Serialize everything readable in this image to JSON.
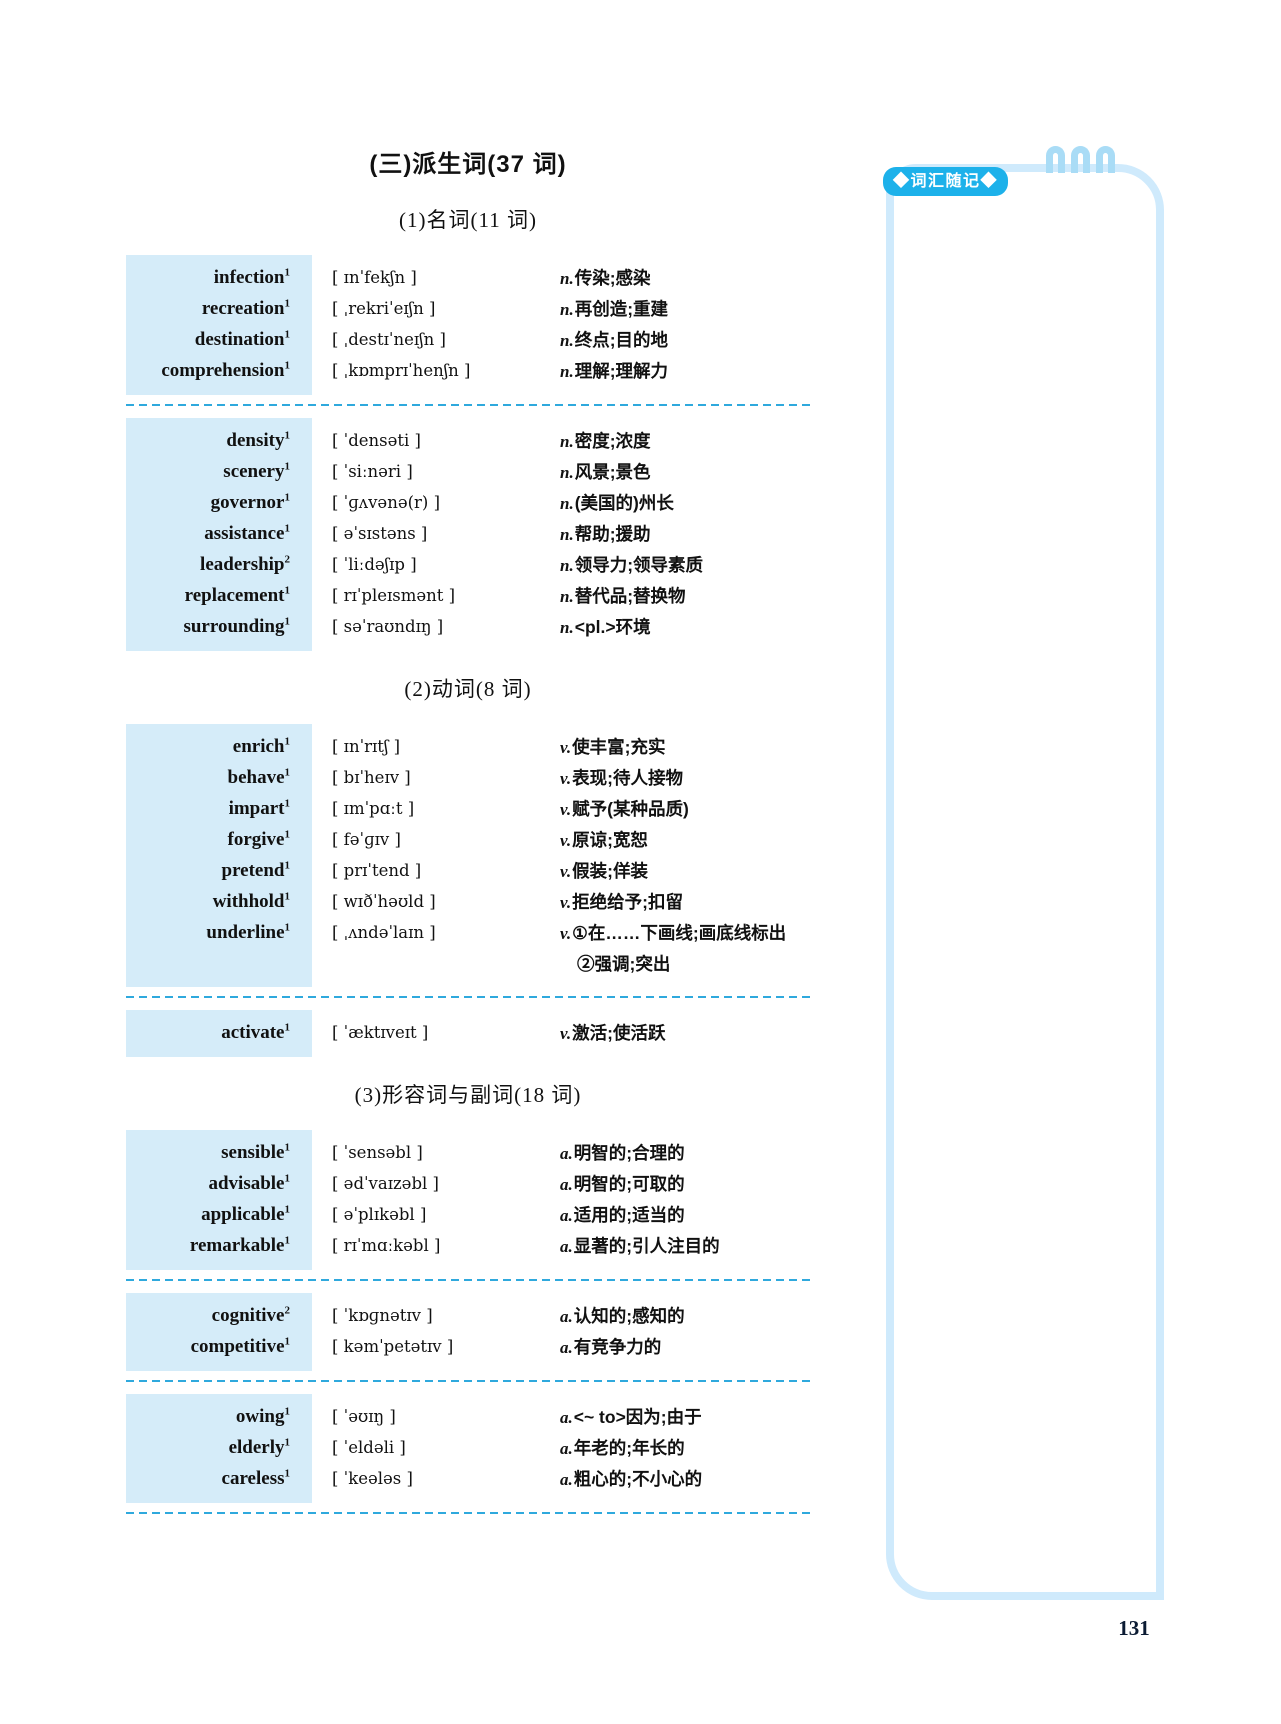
{
  "title": "(三)派生词(37 词)",
  "page": {
    "number": "131"
  },
  "sidebar": {
    "badge": "◆词汇随记◆"
  },
  "colors": {
    "row_background": "#d5ecf9",
    "dashed_divider": "#2fa9dd",
    "note_frame": "#cfeafc",
    "binder_ring": "#a9dcf6",
    "badge_blue": "#1db1ea"
  },
  "sections": [
    {
      "heading": "(1)名词(11 词)",
      "groups": [
        {
          "divider_after": true,
          "rows": [
            {
              "word": "infection",
              "sup": "1",
              "phonetic": "[ ɪnˈfekʃn ]",
              "pos": "n.",
              "meaning": "传染;感染"
            },
            {
              "word": "recreation",
              "sup": "1",
              "phonetic": "[ ˌrekriˈeɪʃn ]",
              "pos": "n.",
              "meaning": "再创造;重建"
            },
            {
              "word": "destination",
              "sup": "1",
              "phonetic": "[ ˌdestɪˈneɪʃn ]",
              "pos": "n.",
              "meaning": "终点;目的地"
            },
            {
              "word": "comprehension",
              "sup": "1",
              "phonetic": "[ ˌkɒmprɪˈhenʃn ]",
              "pos": "n.",
              "meaning": "理解;理解力"
            }
          ]
        },
        {
          "divider_after": false,
          "rows": [
            {
              "word": "density",
              "sup": "1",
              "phonetic": "[ ˈdensəti ]",
              "pos": "n.",
              "meaning": "密度;浓度"
            },
            {
              "word": "scenery",
              "sup": "1",
              "phonetic": "[ ˈsiːnəri ]",
              "pos": "n.",
              "meaning": "风景;景色"
            },
            {
              "word": "governor",
              "sup": "1",
              "phonetic": "[ ˈɡʌvənə(r) ]",
              "pos": "n.",
              "meaning": "(美国的)州长"
            },
            {
              "word": "assistance",
              "sup": "1",
              "phonetic": "[ əˈsɪstəns ]",
              "pos": "n.",
              "meaning": "帮助;援助"
            },
            {
              "word": "leadership",
              "sup": "2",
              "phonetic": "[ ˈliːdəʃɪp ]",
              "pos": "n.",
              "meaning": "领导力;领导素质"
            },
            {
              "word": "replacement",
              "sup": "1",
              "phonetic": "[ rɪˈpleɪsmənt ]",
              "pos": "n.",
              "meaning": "替代品;替换物"
            },
            {
              "word": "surrounding",
              "sup": "1",
              "phonetic": "[ səˈraʊndɪŋ ]",
              "pos": "n.",
              "meaning": "<pl.>环境"
            }
          ]
        }
      ]
    },
    {
      "heading": "(2)动词(8 词)",
      "groups": [
        {
          "divider_after": true,
          "rows": [
            {
              "word": "enrich",
              "sup": "1",
              "phonetic": "[ ɪnˈrɪtʃ ]",
              "pos": "v.",
              "meaning": "使丰富;充实"
            },
            {
              "word": "behave",
              "sup": "1",
              "phonetic": "[ bɪˈheɪv ]",
              "pos": "v.",
              "meaning": "表现;待人接物"
            },
            {
              "word": "impart",
              "sup": "1",
              "phonetic": "[ ɪmˈpɑːt ]",
              "pos": "v.",
              "meaning": "赋予(某种品质)"
            },
            {
              "word": "forgive",
              "sup": "1",
              "phonetic": "[ fəˈɡɪv ]",
              "pos": "v.",
              "meaning": "原谅;宽恕"
            },
            {
              "word": "pretend",
              "sup": "1",
              "phonetic": "[ prɪˈtend ]",
              "pos": "v.",
              "meaning": "假装;佯装"
            },
            {
              "word": "withhold",
              "sup": "1",
              "phonetic": "[ wɪðˈhəʊld ]",
              "pos": "v.",
              "meaning": "拒绝给予;扣留"
            },
            {
              "word": "underline",
              "sup": "1",
              "phonetic": "[ ˌʌndəˈlaɪn ]",
              "pos": "v.",
              "meaning": "①在……下画线;画底线标出",
              "meaning2": "②强调;突出"
            }
          ]
        },
        {
          "divider_after": false,
          "rows": [
            {
              "word": "activate",
              "sup": "1",
              "phonetic": "[ ˈæktɪveɪt ]",
              "pos": "v.",
              "meaning": "激活;使活跃"
            }
          ]
        }
      ]
    },
    {
      "heading": "(3)形容词与副词(18 词)",
      "groups": [
        {
          "divider_after": true,
          "rows": [
            {
              "word": "sensible",
              "sup": "1",
              "phonetic": "[ ˈsensəbl ]",
              "pos": "a.",
              "meaning": "明智的;合理的"
            },
            {
              "word": "advisable",
              "sup": "1",
              "phonetic": "[ ədˈvaɪzəbl ]",
              "pos": "a.",
              "meaning": "明智的;可取的"
            },
            {
              "word": "applicable",
              "sup": "1",
              "phonetic": "[ əˈplɪkəbl ]",
              "pos": "a.",
              "meaning": "适用的;适当的"
            },
            {
              "word": "remarkable",
              "sup": "1",
              "phonetic": "[ rɪˈmɑːkəbl ]",
              "pos": "a.",
              "meaning": "显著的;引人注目的"
            }
          ]
        },
        {
          "divider_after": true,
          "rows": [
            {
              "word": "cognitive",
              "sup": "2",
              "phonetic": "[ ˈkɒɡnətɪv ]",
              "pos": "a.",
              "meaning": "认知的;感知的"
            },
            {
              "word": "competitive",
              "sup": "1",
              "phonetic": "[ kəmˈpetətɪv ]",
              "pos": "a.",
              "meaning": "有竞争力的"
            }
          ]
        },
        {
          "divider_after": true,
          "rows": [
            {
              "word": "owing",
              "sup": "1",
              "phonetic": "[ ˈəʊɪŋ ]",
              "pos": "a.",
              "meaning": "<~ to>因为;由于"
            },
            {
              "word": "elderly",
              "sup": "1",
              "phonetic": "[ ˈeldəli ]",
              "pos": "a.",
              "meaning": "年老的;年长的"
            },
            {
              "word": "careless",
              "sup": "1",
              "phonetic": "[ ˈkeələs ]",
              "pos": "a.",
              "meaning": "粗心的;不小心的"
            }
          ]
        }
      ]
    }
  ]
}
